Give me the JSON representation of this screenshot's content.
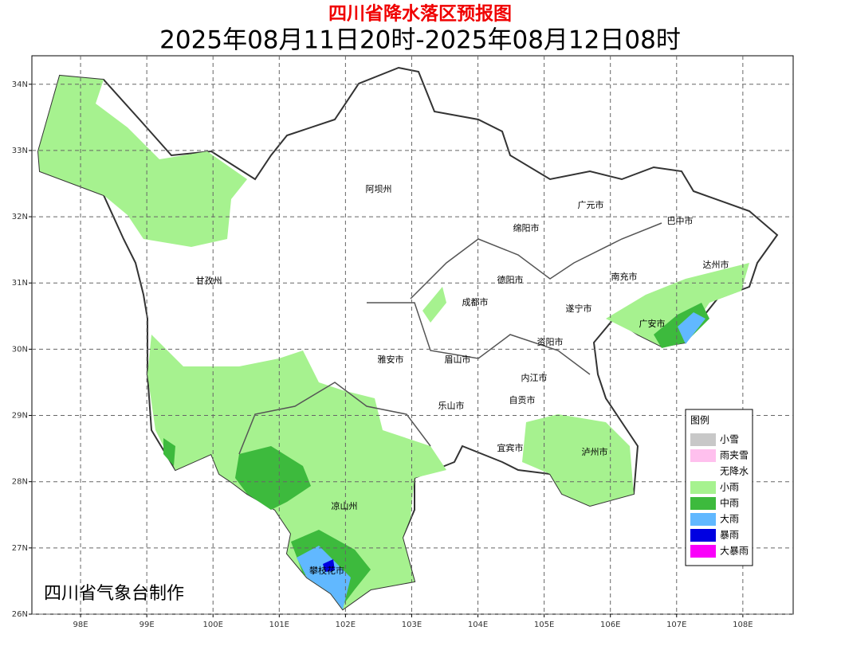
{
  "map": {
    "title": "四川省降水落区预报图",
    "subtitle": "2025年08月11日20时-2025年08月12日08时",
    "xlim": [
      97.265,
      108.76
    ],
    "ylim": [
      26,
      34.43
    ],
    "xticks": [
      {
        "value": 98,
        "label": "98E"
      },
      {
        "value": 99,
        "label": "99E"
      },
      {
        "value": 100,
        "label": "100E"
      },
      {
        "value": 101,
        "label": "101E"
      },
      {
        "value": 102,
        "label": "102E"
      },
      {
        "value": 103,
        "label": "103E"
      },
      {
        "value": 104,
        "label": "104E"
      },
      {
        "value": 105,
        "label": "105E"
      },
      {
        "value": 106,
        "label": "106E"
      },
      {
        "value": 107,
        "label": "107E"
      },
      {
        "value": 108,
        "label": "108E"
      }
    ],
    "yticks": [
      {
        "value": 26,
        "label": "26N"
      },
      {
        "value": 27,
        "label": "27N"
      },
      {
        "value": 28,
        "label": "28N"
      },
      {
        "value": 29,
        "label": "29N"
      },
      {
        "value": 30,
        "label": "30N"
      },
      {
        "value": 31,
        "label": "31N"
      },
      {
        "value": 32,
        "label": "32N"
      },
      {
        "value": 33,
        "label": "33N"
      },
      {
        "value": 34,
        "label": "34N"
      }
    ],
    "cities": [
      "阿坝州",
      "广元市",
      "巴中市",
      "绵阳市",
      "达州市",
      "德阳市",
      "南充市",
      "甘孜州",
      "成都市",
      "遂宁市",
      "广安市",
      "资阳市",
      "雅安市",
      "眉山市",
      "内江市",
      "自贡市",
      "乐山市",
      "宜宾市",
      "泸州市",
      "凉山州",
      "攀枝花市"
    ],
    "legend": {
      "title": "图例",
      "items": [
        {
          "label": "小雪",
          "color": "#c8c8c8"
        },
        {
          "label": "雨夹雪",
          "color": "#ffc0ee"
        },
        {
          "label": "无降水",
          "color": "#ffffff"
        },
        {
          "label": "小雨",
          "color": "#a6f28f"
        },
        {
          "label": "中雨",
          "color": "#3dba3d"
        },
        {
          "label": "大雨",
          "color": "#61b8ff"
        },
        {
          "label": "暴雨",
          "color": "#0000e1"
        },
        {
          "label": "大暴雨",
          "color": "#fa00fa"
        }
      ]
    },
    "footer": "四川省气象台制作"
  }
}
